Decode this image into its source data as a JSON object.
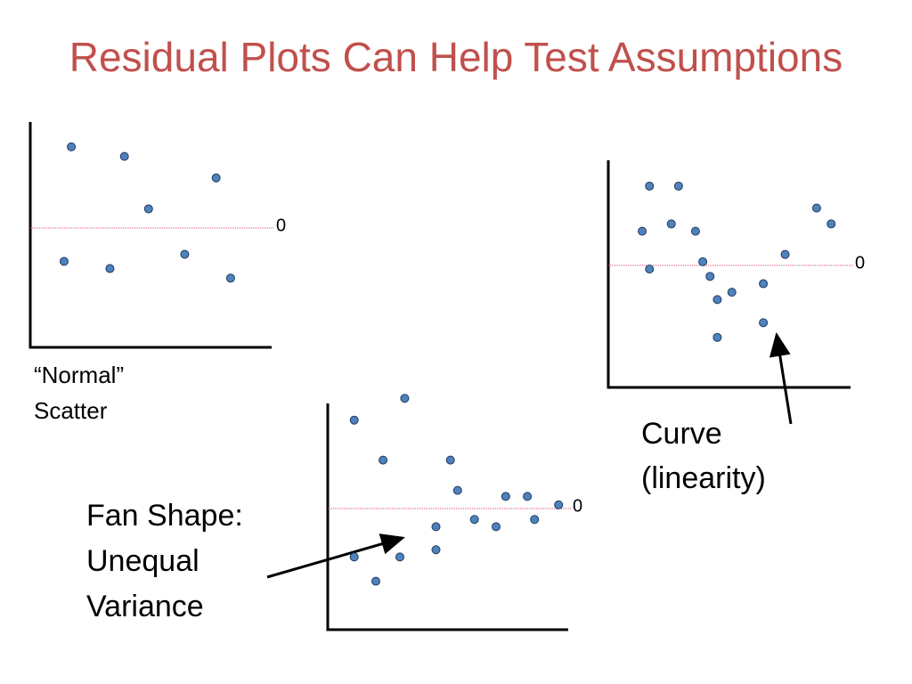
{
  "title": "Residual Plots Can Help Test Assumptions",
  "chart_data": [
    {
      "type": "scatter",
      "annotation": [
        "“Normal”",
        "Scatter"
      ],
      "x": [
        1.7,
        3.9,
        4.9,
        7.7,
        1.4,
        3.3,
        6.4,
        8.3
      ],
      "series": [
        {
          "color": "#4f81bd",
          "values": [
            3.4,
            3.0,
            0.8,
            2.1,
            -1.4,
            -1.7,
            -1.1,
            -2.1
          ]
        }
      ],
      "xlim": [
        0,
        10
      ],
      "ylim": [
        -5,
        5
      ],
      "yticks": [
        0
      ]
    },
    {
      "type": "scatter",
      "annotation": [
        "Curve",
        "(linearity)"
      ],
      "x": [
        1.7,
        2.9,
        1.4,
        2.6,
        3.6,
        1.7,
        3.9,
        4.2,
        4.5,
        5.1,
        4.5,
        6.4,
        6.4,
        7.3,
        8.6,
        9.2
      ],
      "series": [
        {
          "color": "#4f81bd",
          "values": [
            6.5,
            6.5,
            2.8,
            3.4,
            2.8,
            -0.3,
            0.3,
            -0.9,
            -2.8,
            -2.2,
            -5.9,
            -1.5,
            -4.7,
            0.9,
            4.7,
            3.4
          ]
        }
      ],
      "xlim": [
        0,
        10
      ],
      "ylim": [
        -10,
        10
      ],
      "yticks": [
        0
      ]
    },
    {
      "type": "scatter",
      "annotation": [
        "Fan Shape:",
        "Unequal",
        "Variance"
      ],
      "x": [
        1.1,
        3.2,
        2.3,
        5.1,
        5.4,
        7.4,
        8.3,
        9.6,
        1.1,
        2.0,
        3.0,
        4.5,
        4.5,
        6.1,
        7.0,
        8.6
      ],
      "series": [
        {
          "color": "#4f81bd",
          "values": [
            7.3,
            9.1,
            4.0,
            4.0,
            1.5,
            1.0,
            1.0,
            0.3,
            -4.0,
            -6.0,
            -4.0,
            -1.5,
            -3.4,
            -0.9,
            -1.5,
            -0.9
          ]
        }
      ],
      "xlim": [
        0,
        10
      ],
      "ylim": [
        -10,
        10
      ],
      "yticks": [
        0
      ]
    }
  ]
}
